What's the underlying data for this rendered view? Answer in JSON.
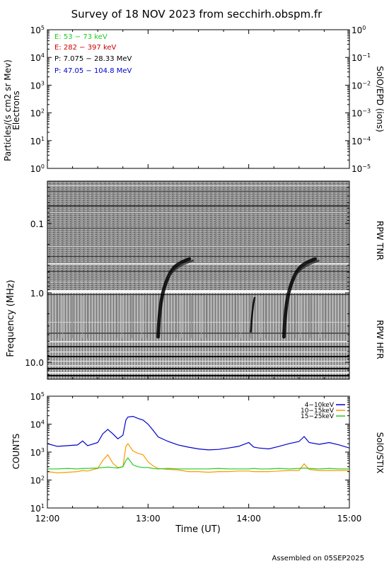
{
  "title": "Survey of 18 NOV 2023 from secchirh.obspm.fr",
  "footer": "Assembled on 05SEP2025",
  "x_axis": {
    "label": "Time (UT)",
    "ticks": [
      "12:00",
      "13:00",
      "14:00",
      "15:00"
    ],
    "range_hours": [
      12,
      15
    ]
  },
  "chart_data": [
    {
      "type": "line",
      "panel": "epd",
      "ylabel_left": "Particles/(s cm2 sr Mev)",
      "ylabel_left2": "Electrons",
      "ylabel_right": "SolO/EPD (ions)",
      "ylim_left": [
        1,
        100000
      ],
      "ylim_right": [
        1e-05,
        1
      ],
      "log_scale": true,
      "left_ticks": [
        {
          "base": "10",
          "exp": "5"
        },
        {
          "base": "10",
          "exp": "4"
        },
        {
          "base": "10",
          "exp": "3"
        },
        {
          "base": "10",
          "exp": "2"
        },
        {
          "base": "10",
          "exp": "1"
        },
        {
          "base": "10",
          "exp": "0"
        }
      ],
      "right_ticks": [
        {
          "base": "10",
          "exp": "0"
        },
        {
          "base": "10",
          "exp": "−1"
        },
        {
          "base": "10",
          "exp": "−2"
        },
        {
          "base": "10",
          "exp": "−3"
        },
        {
          "base": "10",
          "exp": "−4"
        },
        {
          "base": "10",
          "exp": "−5"
        }
      ],
      "legend": [
        {
          "label": "E: 53 − 73 keV",
          "color": "#22cc22"
        },
        {
          "label": "E: 282 − 397 keV",
          "color": "#cc0000"
        },
        {
          "label": "P: 7.075 − 28.33 MeV",
          "color": "#000000"
        },
        {
          "label": "P: 47.05 − 104.8 MeV",
          "color": "#0000cc"
        }
      ],
      "series": []
    },
    {
      "type": "heatmap",
      "panel": "rpw",
      "ylabel": "Frequency (MHz)",
      "right_labels": [
        "RPW TNR",
        "RPW HFR"
      ],
      "y_ticks": [
        "0.1",
        "1.0",
        "10.0"
      ],
      "log_scale": true,
      "bursts": [
        {
          "start_ut": "13:06",
          "low_freq_ut": "13:20"
        },
        {
          "start_ut": "14:18",
          "low_freq_ut": "14:32"
        }
      ]
    },
    {
      "type": "line",
      "panel": "stix",
      "ylabel": "COUNTS",
      "ylabel_right": "SolO/STIX",
      "ylim": [
        10,
        100000
      ],
      "log_scale": true,
      "y_ticks": [
        {
          "base": "10",
          "exp": "5"
        },
        {
          "base": "10",
          "exp": "4"
        },
        {
          "base": "10",
          "exp": "3"
        },
        {
          "base": "10",
          "exp": "2"
        },
        {
          "base": "10",
          "exp": "1"
        }
      ],
      "x_hours": [
        12.0,
        12.1,
        12.2,
        12.3,
        12.35,
        12.4,
        12.5,
        12.55,
        12.6,
        12.65,
        12.7,
        12.75,
        12.78,
        12.8,
        12.85,
        12.9,
        12.95,
        13.0,
        13.05,
        13.1,
        13.2,
        13.3,
        13.4,
        13.5,
        13.6,
        13.7,
        13.8,
        13.9,
        14.0,
        14.05,
        14.1,
        14.2,
        14.3,
        14.4,
        14.5,
        14.55,
        14.6,
        14.7,
        14.8,
        14.9,
        15.0
      ],
      "series": [
        {
          "name": "4−10keV",
          "color": "#0000cc",
          "values": [
            2000,
            1600,
            1700,
            1800,
            2500,
            1700,
            2200,
            4500,
            6500,
            4500,
            3000,
            4000,
            14000,
            18000,
            19000,
            16000,
            14000,
            10000,
            6000,
            3500,
            2400,
            1800,
            1500,
            1300,
            1200,
            1250,
            1400,
            1600,
            2200,
            1500,
            1400,
            1300,
            1600,
            2000,
            2400,
            3600,
            2200,
            1900,
            2200,
            1800,
            1400
          ]
        },
        {
          "name": "10−15keV",
          "color": "#ff9900",
          "values": [
            200,
            180,
            190,
            200,
            220,
            210,
            260,
            500,
            800,
            400,
            280,
            300,
            1600,
            2000,
            1100,
            900,
            800,
            450,
            320,
            260,
            240,
            230,
            200,
            200,
            190,
            200,
            200,
            210,
            210,
            200,
            200,
            200,
            210,
            220,
            220,
            380,
            240,
            220,
            220,
            220,
            220
          ]
        },
        {
          "name": "15−25keV",
          "color": "#22cc22",
          "values": [
            250,
            250,
            260,
            250,
            260,
            260,
            270,
            280,
            290,
            280,
            270,
            300,
            500,
            620,
            350,
            300,
            280,
            280,
            260,
            250,
            260,
            250,
            250,
            250,
            250,
            260,
            250,
            250,
            250,
            260,
            250,
            250,
            260,
            250,
            260,
            270,
            260,
            250,
            260,
            250,
            250
          ]
        }
      ]
    }
  ]
}
